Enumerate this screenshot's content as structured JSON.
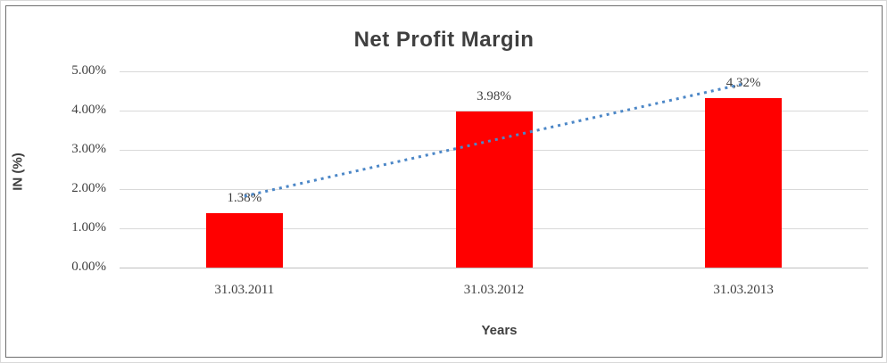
{
  "chart_data": {
    "type": "bar",
    "title": "Net Profit Margin",
    "xlabel": "Years",
    "ylabel": "IN (%)",
    "categories": [
      "31.03.2011",
      "31.03.2012",
      "31.03.2013"
    ],
    "values": [
      1.38,
      3.98,
      4.32
    ],
    "data_labels": [
      "1.38%",
      "3.98%",
      "4,32%"
    ],
    "ytick_labels": [
      "0.00%",
      "1.00%",
      "2.00%",
      "3.00%",
      "4.00%",
      "5.00%"
    ],
    "ylim": [
      0,
      5
    ],
    "ytick_step": 1,
    "grid": true,
    "legend_position": "none",
    "bar_color": "#ff0000",
    "text_color": "#404040",
    "gridline_color": "#d9d9d9",
    "axisline_color": "#bfbfbf",
    "trendline": {
      "type": "linear",
      "style": "dotted",
      "color": "#4c87c7",
      "start_value": 1.82,
      "end_value": 4.68
    }
  }
}
